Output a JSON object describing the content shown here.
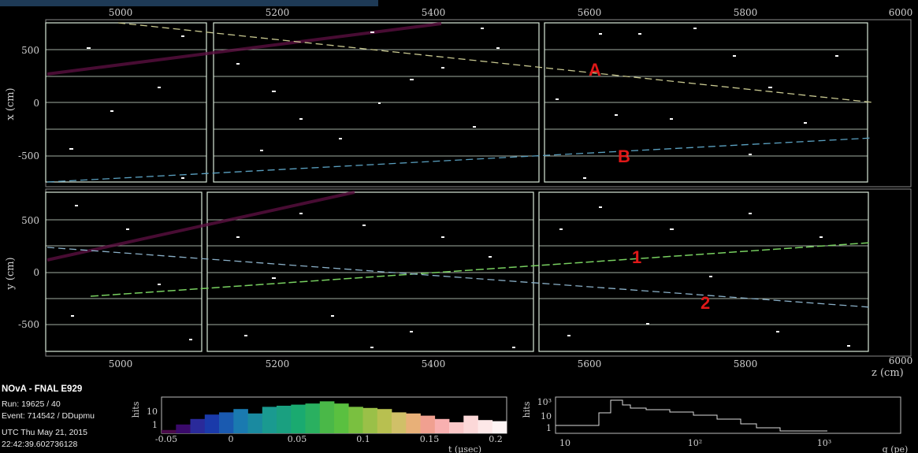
{
  "colors": {
    "background": "#000000",
    "module_border": "#d8e8d8",
    "accent": "#e01818"
  },
  "top_axis": {
    "ticks": [
      "5000",
      "5200",
      "5400",
      "5600",
      "5800",
      "6000"
    ]
  },
  "xview": {
    "ylabel": "x (cm)",
    "yticks": [
      "500",
      "0",
      "-500"
    ],
    "annotations": [
      "A",
      "B"
    ]
  },
  "yview": {
    "ylabel": "y (cm)",
    "yticks": [
      "500",
      "0",
      "-500"
    ],
    "annotations": [
      "1",
      "2"
    ]
  },
  "bottom_axis": {
    "ticks": [
      "5000",
      "5200",
      "5400",
      "5600",
      "5800",
      "6000"
    ],
    "label": "z (cm)"
  },
  "event_info": {
    "experiment": "NOvA - FNAL E929",
    "run": "Run:  19625 / 40",
    "event": "Event: 714542 / DDupmu",
    "date": "UTC Thu May 21, 2015",
    "time": "22:42:39.602736128"
  },
  "time_hist": {
    "ylabel": "hits",
    "ytick_10": "10",
    "ytick_1": "1",
    "xticks": [
      "-0.05",
      "0",
      "0.05",
      "0.1",
      "0.15",
      "0.2"
    ],
    "xlabel": "t (μsec)",
    "bars": [
      0.3,
      0.8,
      1.3,
      1.7,
      1.9,
      2.2,
      1.8,
      2.4,
      2.5,
      2.6,
      2.7,
      2.9,
      2.7,
      2.4,
      2.3,
      2.2,
      1.9,
      1.8,
      1.6,
      1.3,
      1.0,
      1.6,
      1.2,
      1.1
    ],
    "bar_colors": [
      "#4a0a4a",
      "#3a0a6a",
      "#2a2a9a",
      "#1a3aaa",
      "#1a5ab0",
      "#1a7ab0",
      "#1a8aa0",
      "#1a9a90",
      "#1aa080",
      "#1aaa70",
      "#2ab060",
      "#4ab848",
      "#5ac040",
      "#7ac040",
      "#9ac048",
      "#b8c050",
      "#d0c068",
      "#e8b078",
      "#f0a090",
      "#f8b0b0",
      "#fbc8c8",
      "#fcd8d8",
      "#fde8e8",
      "#fef4f4"
    ]
  },
  "charge_hist": {
    "ylabel": "hits",
    "ytick_1000": "10³",
    "ytick_10": "10",
    "ytick_1": "1",
    "xticks": [
      "10",
      "10²",
      "10³"
    ],
    "xlabel": "q (pe)"
  }
}
